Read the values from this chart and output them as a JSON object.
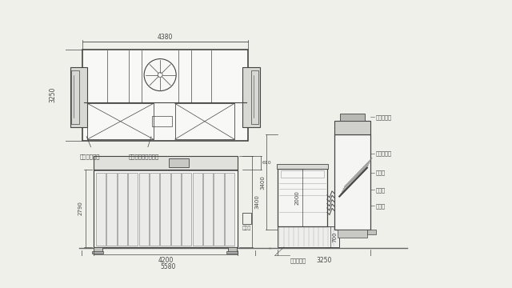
{
  "bg_color": "#f0f0eb",
  "line_color": "#444444",
  "dim_color": "#444444",
  "thin_color": "#888888",
  "labels": {
    "top_dim_w": "4380",
    "top_dim_h": "3250",
    "front_dim_w1": "4200",
    "front_dim_w2": "5580",
    "front_dim_h1": "2790",
    "front_dim_h2": "3400",
    "front_dim_top": "610",
    "side_dim_h1": "3400",
    "side_dim_h2": "2000",
    "side_dim_h3": "700",
    "side_dim_w": "3250",
    "label_booth": "ブース制御盤",
    "label_light": "安全増防爆形蛍光灯",
    "label_fan": "排気ファン",
    "label_filter": "フィルター",
    "label_insp1": "点検扉",
    "label_insp2": "点検扉",
    "label_tank": "タンク",
    "label_oilpan": "オイルパン",
    "label_pump": "ポンプ"
  }
}
